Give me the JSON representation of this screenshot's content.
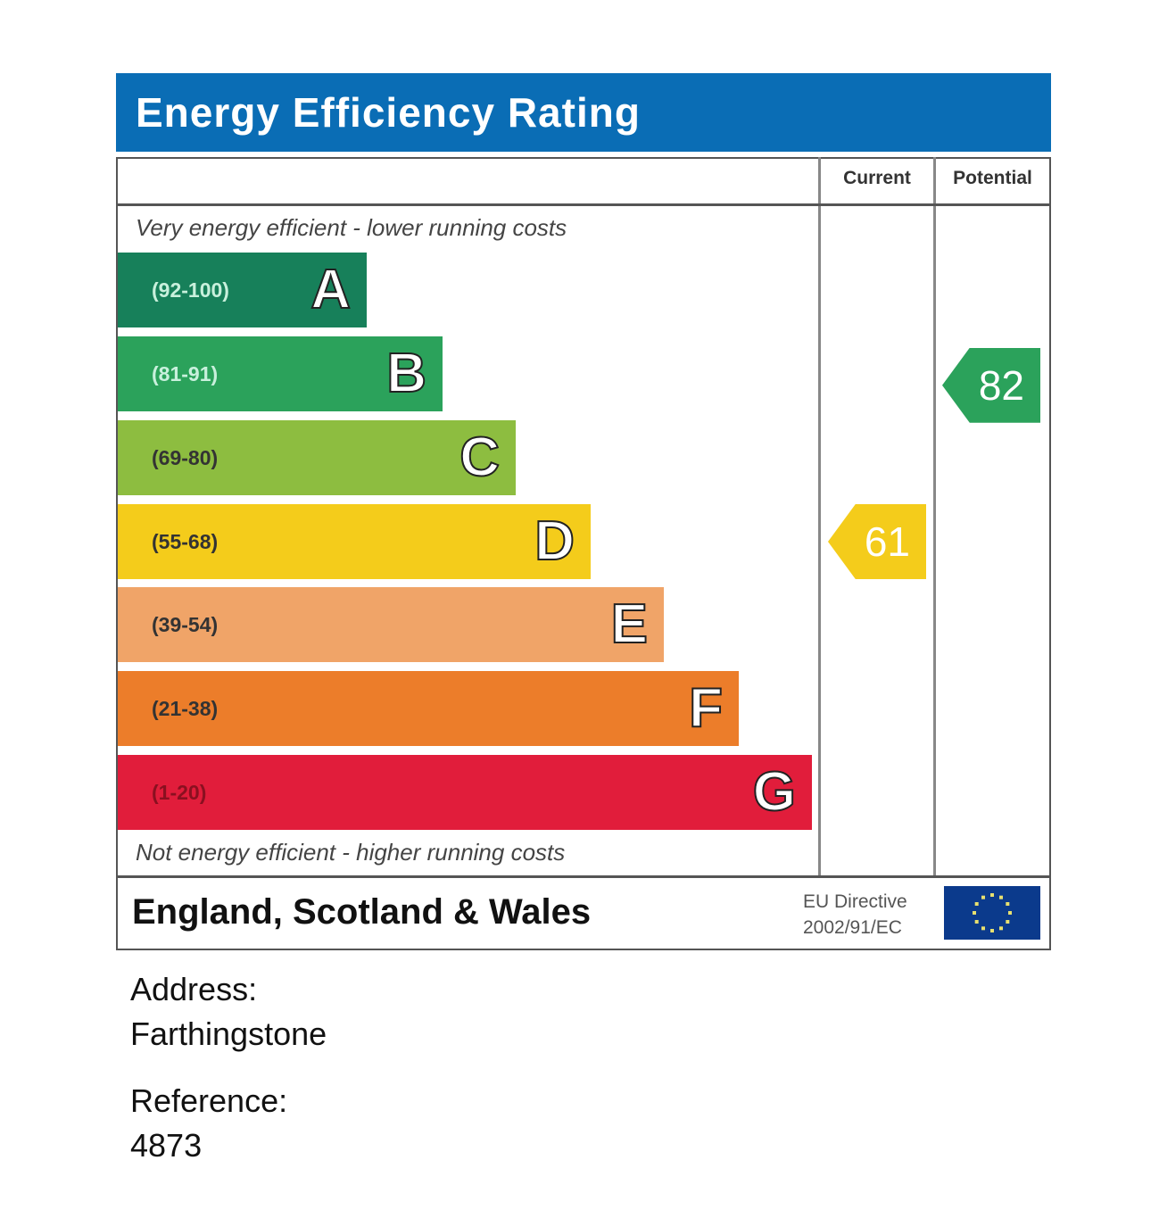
{
  "title": "Energy Efficiency Rating",
  "columns": {
    "current": "Current",
    "potential": "Potential"
  },
  "top_note": "Very energy efficient - lower running costs",
  "bottom_note": "Not energy efficient - higher running costs",
  "region": "England, Scotland & Wales",
  "directive": {
    "line1": "EU Directive",
    "line2": "2002/91/EC"
  },
  "address": {
    "label": "Address:",
    "value": "Farthingstone"
  },
  "reference": {
    "label": "Reference:",
    "value": "4873"
  },
  "chart_data": {
    "type": "bar",
    "bands": [
      {
        "letter": "A",
        "range": "(92-100)",
        "color": "#17805a",
        "text_color": "#c8f0dc"
      },
      {
        "letter": "B",
        "range": "(81-91)",
        "color": "#2ba25b",
        "text_color": "#c8f0dc"
      },
      {
        "letter": "C",
        "range": "(69-80)",
        "color": "#8dbd40",
        "text_color": "#333333"
      },
      {
        "letter": "D",
        "range": "(55-68)",
        "color": "#f4cc1b",
        "text_color": "#333333"
      },
      {
        "letter": "E",
        "range": "(39-54)",
        "color": "#f0a468",
        "text_color": "#333333"
      },
      {
        "letter": "F",
        "range": "(21-38)",
        "color": "#ec7d2a",
        "text_color": "#333333"
      },
      {
        "letter": "G",
        "range": "(1-20)",
        "color": "#e11d3b",
        "text_color": "#8a1020"
      }
    ],
    "current": {
      "value": 61,
      "band": "D",
      "color": "#f4cc1b"
    },
    "potential": {
      "value": 82,
      "band": "B",
      "color": "#2ba25b"
    }
  },
  "colors": {
    "header": "#0a6db5",
    "eu_flag": "#0b3a8c"
  }
}
